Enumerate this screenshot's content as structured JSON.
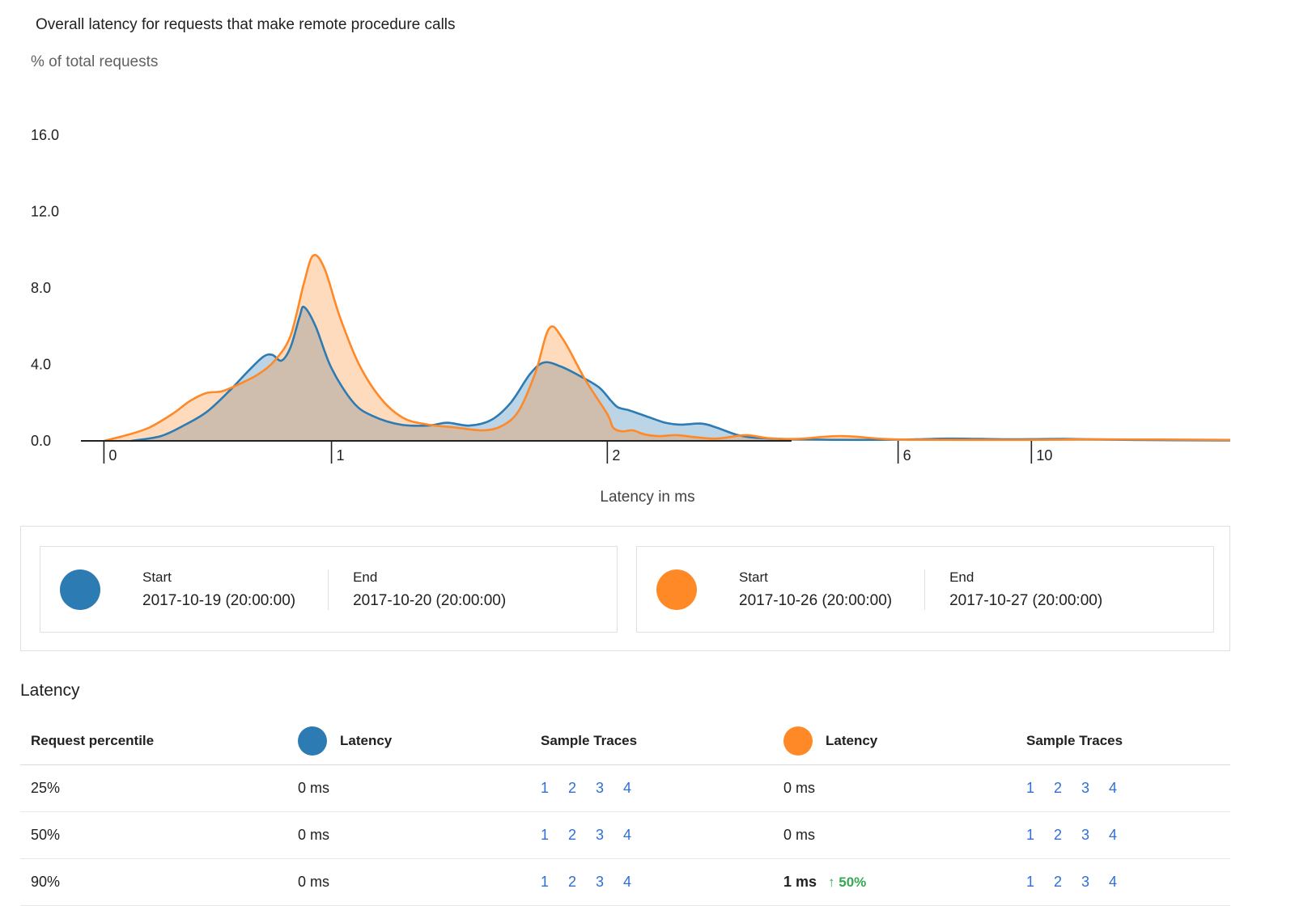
{
  "title": "Overall latency for requests that make remote procedure calls",
  "subtitle": "% of total requests",
  "xaxis_title": "Latency in ms",
  "colors": {
    "series_blue": "#2d7bb3",
    "series_orange": "#ff8827",
    "blue_fill_opacity": 0.32,
    "orange_fill_opacity": 0.3,
    "link": "#2f6fd6",
    "delta_green": "#34a853",
    "axis": "#212121"
  },
  "chart_data": {
    "type": "area",
    "title": "Overall latency for requests that make remote procedure calls",
    "xlabel": "Latency in ms",
    "ylabel": "% of total requests",
    "ylim": [
      0,
      16
    ],
    "y_ticks": [
      0.0,
      4.0,
      8.0,
      12.0,
      16.0
    ],
    "x_ticks": [
      {
        "label": "0",
        "ms": 0,
        "pos": 0.02
      },
      {
        "label": "1",
        "ms": 1,
        "pos": 0.218
      },
      {
        "label": "2",
        "ms": 2,
        "pos": 0.458
      },
      {
        "label": "6",
        "ms": 6,
        "pos": 0.711
      },
      {
        "label": "10",
        "ms": 10,
        "pos": 0.827
      }
    ],
    "x_end_ms": 16,
    "grid": false,
    "legend_position": "bottom",
    "series": [
      {
        "name": "2017-10-19 (20:00:00) to 2017-10-20 (20:00:00)",
        "color": "#2d7bb3",
        "points": [
          [
            0.12,
            0
          ],
          [
            0.25,
            0.25
          ],
          [
            0.35,
            0.8
          ],
          [
            0.45,
            1.5
          ],
          [
            0.55,
            2.6
          ],
          [
            0.63,
            3.6
          ],
          [
            0.7,
            4.4
          ],
          [
            0.74,
            4.5
          ],
          [
            0.78,
            4.2
          ],
          [
            0.82,
            4.9
          ],
          [
            0.86,
            6.5
          ],
          [
            0.88,
            7.0
          ],
          [
            0.93,
            6.0
          ],
          [
            1.0,
            3.8
          ],
          [
            1.08,
            2.0
          ],
          [
            1.15,
            1.3
          ],
          [
            1.25,
            0.85
          ],
          [
            1.35,
            0.8
          ],
          [
            1.42,
            0.95
          ],
          [
            1.5,
            0.8
          ],
          [
            1.58,
            1.1
          ],
          [
            1.65,
            2.0
          ],
          [
            1.72,
            3.5
          ],
          [
            1.77,
            4.1
          ],
          [
            1.83,
            3.9
          ],
          [
            1.9,
            3.4
          ],
          [
            1.97,
            2.8
          ],
          [
            2.05,
            2.1
          ],
          [
            2.15,
            1.75
          ],
          [
            2.3,
            1.6
          ],
          [
            2.45,
            1.4
          ],
          [
            2.6,
            1.2
          ],
          [
            2.8,
            0.95
          ],
          [
            3.0,
            0.85
          ],
          [
            3.3,
            0.9
          ],
          [
            3.5,
            0.7
          ],
          [
            3.8,
            0.3
          ],
          [
            4.1,
            0.15
          ],
          [
            4.6,
            0.08
          ],
          [
            5.5,
            0.05
          ],
          [
            6.5,
            0.08
          ],
          [
            7.5,
            0.12
          ],
          [
            8.5,
            0.1
          ],
          [
            9.5,
            0.08
          ],
          [
            11.0,
            0.1
          ],
          [
            13.0,
            0.05
          ],
          [
            16.0,
            0.02
          ]
        ]
      },
      {
        "name": "2017-10-26 (20:00:00) to 2017-10-27 (20:00:00)",
        "color": "#ff8827",
        "points": [
          [
            0.0,
            0
          ],
          [
            0.1,
            0.3
          ],
          [
            0.2,
            0.7
          ],
          [
            0.3,
            1.4
          ],
          [
            0.38,
            2.1
          ],
          [
            0.45,
            2.5
          ],
          [
            0.52,
            2.6
          ],
          [
            0.6,
            3.0
          ],
          [
            0.68,
            3.5
          ],
          [
            0.75,
            4.2
          ],
          [
            0.82,
            5.5
          ],
          [
            0.88,
            8.3
          ],
          [
            0.92,
            9.7
          ],
          [
            0.97,
            9.0
          ],
          [
            1.03,
            6.5
          ],
          [
            1.1,
            4.0
          ],
          [
            1.18,
            2.2
          ],
          [
            1.26,
            1.2
          ],
          [
            1.35,
            0.85
          ],
          [
            1.45,
            0.7
          ],
          [
            1.55,
            0.55
          ],
          [
            1.62,
            0.8
          ],
          [
            1.68,
            1.6
          ],
          [
            1.74,
            3.6
          ],
          [
            1.79,
            5.9
          ],
          [
            1.84,
            5.3
          ],
          [
            1.92,
            3.2
          ],
          [
            2.0,
            1.4
          ],
          [
            2.08,
            0.7
          ],
          [
            2.2,
            0.5
          ],
          [
            2.35,
            0.55
          ],
          [
            2.5,
            0.35
          ],
          [
            2.7,
            0.25
          ],
          [
            2.95,
            0.3
          ],
          [
            3.2,
            0.2
          ],
          [
            3.5,
            0.12
          ],
          [
            3.9,
            0.3
          ],
          [
            4.2,
            0.15
          ],
          [
            4.6,
            0.1
          ],
          [
            5.2,
            0.25
          ],
          [
            5.8,
            0.1
          ],
          [
            6.5,
            0.06
          ],
          [
            8.0,
            0.05
          ],
          [
            10.0,
            0.05
          ],
          [
            12.0,
            0.08
          ],
          [
            16.0,
            0.05
          ]
        ]
      }
    ]
  },
  "legend": {
    "ranges": [
      {
        "color": "#2d7bb3",
        "start_label": "Start",
        "start_value": "2017-10-19 (20:00:00)",
        "end_label": "End",
        "end_value": "2017-10-20 (20:00:00)"
      },
      {
        "color": "#ff8827",
        "start_label": "Start",
        "start_value": "2017-10-26 (20:00:00)",
        "end_label": "End",
        "end_value": "2017-10-27 (20:00:00)"
      }
    ]
  },
  "table": {
    "section_title": "Latency",
    "headers": {
      "percentile": "Request percentile",
      "latency_a": "Latency",
      "traces_a": "Sample Traces",
      "latency_b": "Latency",
      "traces_b": "Sample Traces"
    },
    "rows": [
      {
        "percentile": "25%",
        "latency_a": "0 ms",
        "traces_a": [
          "1",
          "2",
          "3",
          "4"
        ],
        "latency_b": "0 ms",
        "delta_b": "",
        "traces_b": [
          "1",
          "2",
          "3",
          "4"
        ]
      },
      {
        "percentile": "50%",
        "latency_a": "0 ms",
        "traces_a": [
          "1",
          "2",
          "3",
          "4"
        ],
        "latency_b": "0 ms",
        "delta_b": "",
        "traces_b": [
          "1",
          "2",
          "3",
          "4"
        ]
      },
      {
        "percentile": "90%",
        "latency_a": "0 ms",
        "traces_a": [
          "1",
          "2",
          "3",
          "4"
        ],
        "latency_b": "1 ms",
        "delta_b": "↑ 50%",
        "traces_b": [
          "1",
          "2",
          "3",
          "4"
        ]
      }
    ]
  }
}
